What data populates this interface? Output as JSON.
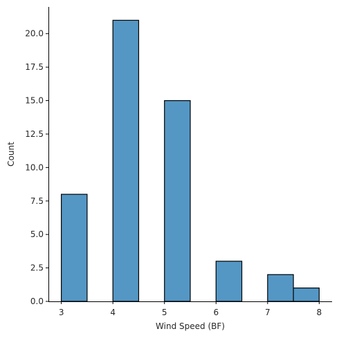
{
  "chart_data": {
    "type": "bar",
    "subtype": "histogram",
    "title": "",
    "xlabel": "Wind Speed (BF)",
    "ylabel": "Count",
    "xlim": [
      2.75,
      8.25
    ],
    "ylim": [
      0,
      22.0
    ],
    "xticks": [
      3,
      4,
      5,
      6,
      7,
      8
    ],
    "yticks": [
      0.0,
      2.5,
      5.0,
      7.5,
      10.0,
      12.5,
      15.0,
      17.5,
      20.0
    ],
    "xtick_labels": [
      "3",
      "4",
      "5",
      "6",
      "7",
      "8"
    ],
    "ytick_labels": [
      "0.0",
      "2.5",
      "5.0",
      "7.5",
      "10.0",
      "12.5",
      "15.0",
      "17.5",
      "20.0"
    ],
    "bins": [
      {
        "x0": 3.0,
        "x1": 3.5,
        "count": 8
      },
      {
        "x0": 3.5,
        "x1": 4.0,
        "count": 0
      },
      {
        "x0": 4.0,
        "x1": 4.5,
        "count": 21
      },
      {
        "x0": 4.5,
        "x1": 5.0,
        "count": 0
      },
      {
        "x0": 5.0,
        "x1": 5.5,
        "count": 15
      },
      {
        "x0": 5.5,
        "x1": 6.0,
        "count": 0
      },
      {
        "x0": 6.0,
        "x1": 6.5,
        "count": 3
      },
      {
        "x0": 6.5,
        "x1": 7.0,
        "count": 0
      },
      {
        "x0": 7.0,
        "x1": 7.5,
        "count": 2
      },
      {
        "x0": 7.5,
        "x1": 8.0,
        "count": 1
      }
    ],
    "grid": false,
    "legend": "none",
    "colors": {
      "bar_fill": "#5497c5",
      "bar_edge": "#000000",
      "axis": "#000000",
      "text": "#262626"
    }
  }
}
